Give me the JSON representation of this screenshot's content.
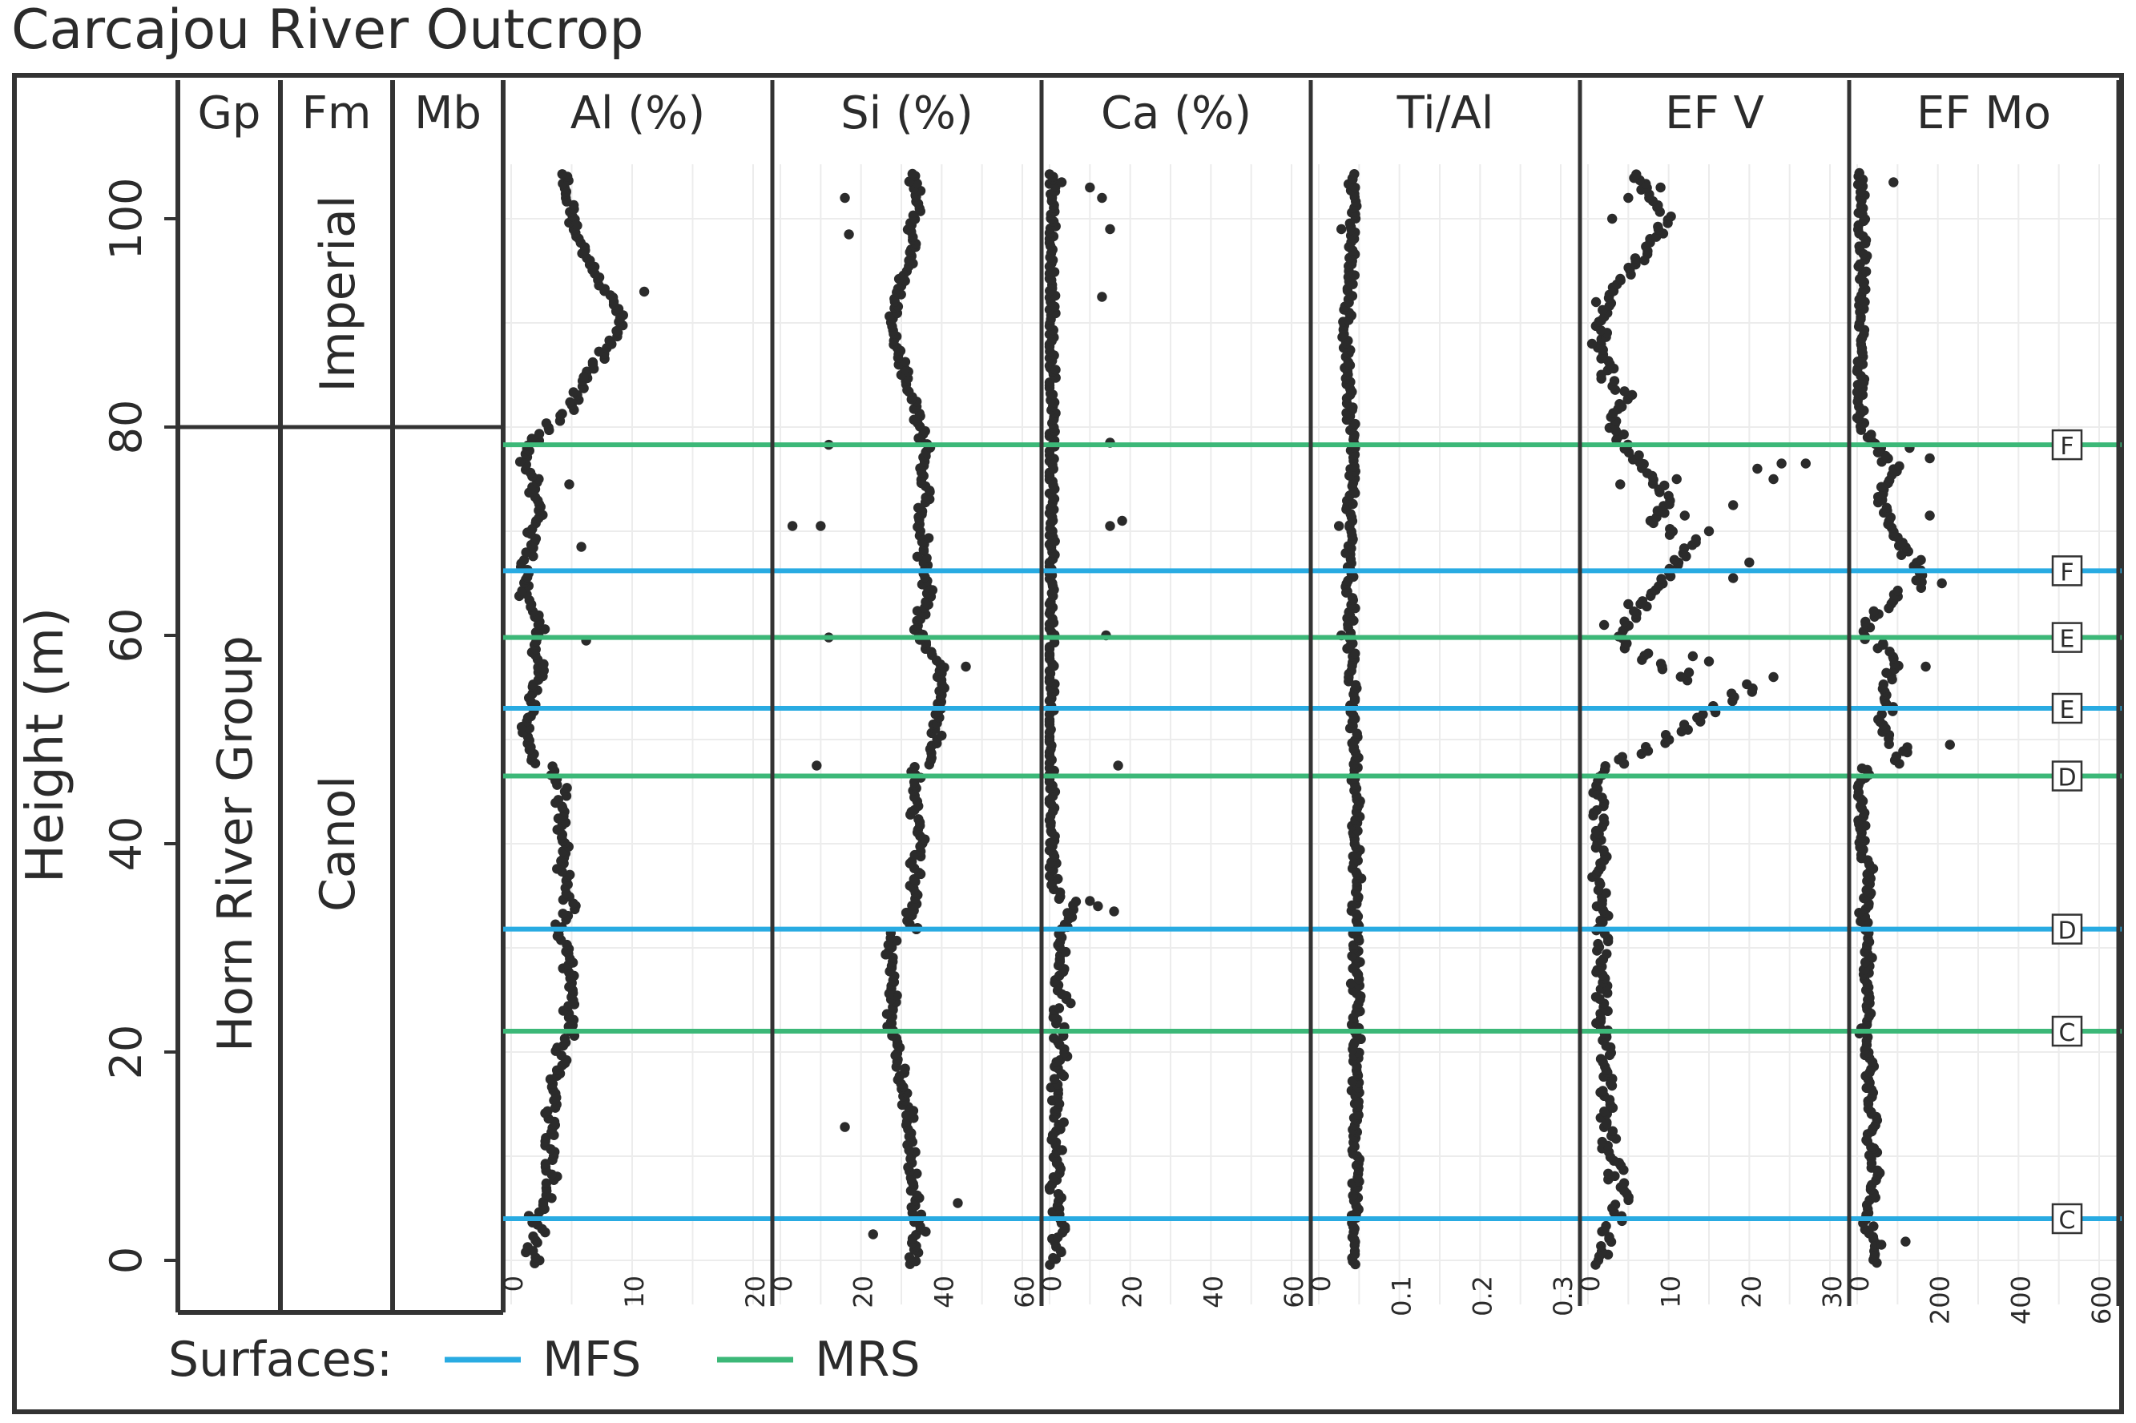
{
  "figure": {
    "title": "Carcajou River Outcrop",
    "y_axis": {
      "label": "Height (m)",
      "range": [
        0,
        105
      ],
      "ticks": [
        0,
        20,
        40,
        60,
        80,
        100
      ]
    },
    "strat_columns": {
      "headers": [
        "Gp",
        "Fm",
        "Mb"
      ],
      "groups": [
        {
          "name": "Horn River Group",
          "from": 0,
          "to": 80
        }
      ],
      "formations": [
        {
          "name": "Imperial",
          "from": 80,
          "to": 105
        },
        {
          "name": "Canol",
          "from": 0,
          "to": 80
        }
      ],
      "boundary_height": 80
    },
    "legend": {
      "label": "Surfaces:",
      "items": [
        {
          "name": "MFS",
          "color": "#29abe2"
        },
        {
          "name": "MRS",
          "color": "#3cb878"
        }
      ]
    },
    "point_color": "#2b2b2b"
  },
  "chart_data": {
    "type": "scatter",
    "y": "height_m",
    "heights": [
      0,
      1,
      2,
      3,
      4,
      5,
      6,
      7,
      8,
      9,
      10,
      11,
      12,
      13,
      14,
      15,
      16,
      17,
      18,
      19,
      20,
      21,
      22,
      23,
      24,
      25,
      26,
      27,
      28,
      29,
      30,
      31,
      32,
      33,
      34,
      35,
      36,
      37,
      38,
      39,
      40,
      41,
      42,
      43,
      44,
      45,
      46,
      47,
      48,
      49,
      50,
      51,
      52,
      53,
      54,
      55,
      56,
      57,
      58,
      59,
      60,
      61,
      62,
      63,
      64,
      65,
      66,
      67,
      68,
      69,
      70,
      71,
      72,
      73,
      74,
      75,
      76,
      77,
      78,
      79,
      80,
      81,
      82,
      83,
      84,
      85,
      86,
      87,
      88,
      89,
      90,
      91,
      92,
      93,
      94,
      95,
      96,
      97,
      98,
      99,
      100,
      101,
      102,
      103,
      104
    ],
    "panels": [
      {
        "name": "Al (%)",
        "xlim": [
          0,
          20
        ],
        "ticks": [
          "0",
          "10",
          "20"
        ],
        "values": [
          2,
          1.5,
          2,
          2.5,
          1.8,
          2.5,
          3,
          2.8,
          3.5,
          3,
          3.5,
          3,
          3.2,
          3.5,
          3,
          3.8,
          3.5,
          3.5,
          4,
          4.5,
          4,
          4.5,
          5,
          5,
          4.5,
          5,
          4.8,
          5,
          4.5,
          5,
          4.5,
          4,
          4,
          4.5,
          5,
          4.5,
          4.8,
          4.5,
          4,
          4.5,
          4.5,
          4,
          4.2,
          4.5,
          4,
          4.5,
          4,
          3.5,
          2,
          1.8,
          1.5,
          1.2,
          1.5,
          2,
          1.8,
          2,
          2.5,
          2.5,
          2,
          1.8,
          2,
          2.5,
          2,
          1.5,
          1,
          1.2,
          1.5,
          1,
          1.5,
          2,
          1.5,
          2,
          2.5,
          2,
          1.8,
          2,
          1.5,
          1,
          1.2,
          2,
          3,
          4,
          5,
          5.5,
          6,
          6.5,
          7,
          7.5,
          8,
          8.5,
          9,
          9,
          8.5,
          8,
          7.5,
          7,
          6.5,
          6,
          5.5,
          5.5,
          5,
          5,
          4.5,
          4.5,
          4.5
        ],
        "outliers": [
          [
            11,
            93
          ],
          [
            6,
            84.8
          ],
          [
            4.8,
            74.5
          ],
          [
            5.8,
            68.5
          ],
          [
            6.2,
            59.5
          ]
        ]
      },
      {
        "name": "Si (%)",
        "xlim": [
          0,
          60
        ],
        "ticks": [
          "0",
          "20",
          "40",
          "60"
        ],
        "values": [
          33,
          34,
          33,
          35,
          34,
          33,
          34,
          33,
          33,
          32,
          33,
          32,
          32,
          31,
          32,
          31,
          31,
          30,
          30,
          29,
          29,
          28,
          27,
          28,
          27,
          28,
          27,
          28,
          28,
          27,
          27,
          28,
          33,
          32,
          33,
          34,
          33,
          34,
          33,
          34,
          35,
          34,
          34,
          33,
          34,
          33,
          34,
          33,
          37,
          38,
          39,
          38,
          39,
          40,
          39,
          40,
          39,
          40,
          38,
          37,
          35,
          34,
          35,
          36,
          37,
          36,
          35,
          36,
          35,
          36,
          35,
          34,
          35,
          36,
          37,
          36,
          35,
          36,
          37,
          35,
          35,
          34,
          33,
          32,
          32,
          31,
          30,
          29,
          29,
          28,
          28,
          28,
          29,
          29,
          30,
          31,
          32,
          33,
          33,
          32,
          33,
          34,
          33,
          34,
          33
        ],
        "outliers": [
          [
            12,
            78.3
          ],
          [
            3,
            70.5
          ],
          [
            10,
            70.5
          ],
          [
            12,
            59.8
          ],
          [
            9,
            47.5
          ],
          [
            16,
            12.8
          ],
          [
            23,
            2.5
          ],
          [
            44,
            5.5
          ],
          [
            46,
            57
          ],
          [
            17,
            98.5
          ],
          [
            16,
            102
          ]
        ]
      },
      {
        "name": "Ca (%)",
        "xlim": [
          0,
          60
        ],
        "ticks": [
          "0",
          "20",
          "40",
          "60"
        ],
        "values": [
          1,
          2,
          1.5,
          3,
          2,
          1.5,
          2,
          1,
          1.5,
          2,
          1,
          2.5,
          1.5,
          3,
          2,
          1.5,
          2,
          1,
          3,
          2,
          4,
          2,
          3,
          1.5,
          2,
          5,
          3,
          2,
          3,
          2,
          3,
          2,
          4,
          5,
          6,
          3,
          1.5,
          1,
          1,
          0.5,
          0.5,
          0.5,
          0.5,
          0.4,
          0.4,
          0.4,
          0.4,
          0.4,
          0.4,
          0.4,
          0.3,
          0.3,
          0.3,
          0.3,
          0.3,
          0.3,
          0.3,
          0.3,
          0.3,
          0.3,
          0.3,
          0.3,
          0.3,
          0.3,
          0.3,
          0.3,
          0.3,
          0.3,
          0.3,
          0.3,
          0.3,
          0.3,
          0.3,
          0.3,
          0.3,
          0.3,
          0.3,
          0.3,
          0.3,
          0.3,
          0.5,
          0.5,
          0.5,
          0.5,
          0.5,
          0.5,
          0.5,
          0.5,
          0.5,
          0.5,
          0.5,
          0.5,
          0.5,
          0.5,
          0.5,
          0.5,
          0.5,
          0.5,
          0.5,
          0.5,
          0.5,
          0.5,
          0.5,
          0.5,
          0.5
        ],
        "outliers": [
          [
            13,
            102
          ],
          [
            15,
            99
          ],
          [
            3,
            103.5
          ],
          [
            10,
            103
          ],
          [
            13,
            92.5
          ],
          [
            1.5,
            85.5
          ],
          [
            15,
            78.5
          ],
          [
            18,
            71
          ],
          [
            15,
            70.5
          ],
          [
            14,
            60
          ],
          [
            17,
            47.5
          ],
          [
            12,
            34
          ],
          [
            16,
            33.5
          ],
          [
            10,
            34.5
          ]
        ]
      },
      {
        "name": "Ti/Al",
        "xlim": [
          0,
          0.3
        ],
        "ticks": [
          "0",
          "0.1",
          "0.2",
          "0.3"
        ],
        "values": [
          0.045,
          0.046,
          0.045,
          0.044,
          0.045,
          0.046,
          0.047,
          0.046,
          0.045,
          0.046,
          0.047,
          0.046,
          0.045,
          0.046,
          0.047,
          0.046,
          0.045,
          0.046,
          0.046,
          0.045,
          0.046,
          0.047,
          0.046,
          0.045,
          0.046,
          0.047,
          0.046,
          0.045,
          0.046,
          0.046,
          0.045,
          0.046,
          0.047,
          0.046,
          0.045,
          0.046,
          0.047,
          0.048,
          0.047,
          0.046,
          0.047,
          0.046,
          0.045,
          0.046,
          0.047,
          0.046,
          0.045,
          0.046,
          0.045,
          0.044,
          0.045,
          0.044,
          0.043,
          0.044,
          0.043,
          0.042,
          0.041,
          0.042,
          0.041,
          0.04,
          0.041,
          0.04,
          0.039,
          0.04,
          0.039,
          0.038,
          0.039,
          0.038,
          0.037,
          0.038,
          0.039,
          0.038,
          0.039,
          0.04,
          0.041,
          0.04,
          0.041,
          0.042,
          0.041,
          0.042,
          0.04,
          0.039,
          0.038,
          0.037,
          0.036,
          0.035,
          0.035,
          0.036,
          0.035,
          0.034,
          0.035,
          0.036,
          0.037,
          0.038,
          0.039,
          0.04,
          0.041,
          0.042,
          0.041,
          0.042,
          0.041,
          0.042,
          0.041,
          0.042,
          0.041
        ],
        "outliers": [
          [
            0.025,
            70.5
          ],
          [
            0.028,
            60
          ],
          [
            0.028,
            99
          ]
        ]
      },
      {
        "name": "EF V",
        "xlim": [
          0,
          30
        ],
        "ticks": [
          "0",
          "10",
          "20",
          "30"
        ],
        "values": [
          1,
          2,
          3,
          2,
          4,
          3,
          5,
          4,
          3,
          4,
          3,
          2,
          3,
          2,
          2,
          3,
          2,
          3,
          2,
          2,
          3,
          2,
          2,
          1.5,
          2,
          1.5,
          2,
          2,
          1.5,
          2,
          1.5,
          2,
          1.5,
          2,
          1.5,
          2,
          1.5,
          1,
          1.5,
          2,
          1.5,
          1,
          1.5,
          1,
          1.5,
          1,
          1.5,
          2,
          4,
          7,
          10,
          12,
          14,
          16,
          18,
          20,
          12,
          9,
          7,
          5,
          4,
          5,
          6,
          7,
          8,
          9,
          10,
          11,
          12,
          13,
          10,
          8,
          9,
          10,
          9,
          8,
          7,
          6,
          5,
          4,
          3,
          3,
          4,
          5,
          3,
          2,
          3,
          2,
          1.5,
          2,
          1.5,
          2,
          2.5,
          3,
          4,
          5,
          6,
          7,
          8,
          9,
          10,
          9,
          8,
          7,
          6
        ],
        "outliers": [
          [
            27,
            76.5
          ],
          [
            24,
            76.5
          ],
          [
            21,
            76
          ],
          [
            23,
            75
          ],
          [
            18,
            72.5
          ],
          [
            20,
            67
          ],
          [
            18,
            65.5
          ],
          [
            15,
            70
          ],
          [
            12,
            71.5
          ],
          [
            11,
            75
          ],
          [
            4,
            74.5
          ],
          [
            2,
            61
          ],
          [
            5,
            63
          ],
          [
            13,
            58
          ],
          [
            15,
            57.5
          ],
          [
            23,
            56
          ],
          [
            9,
            103
          ],
          [
            5,
            102
          ],
          [
            3,
            100
          ],
          [
            7,
            96
          ],
          [
            1,
            92
          ],
          [
            0.5,
            88
          ]
        ]
      },
      {
        "name": "EF Mo",
        "xlim": [
          0,
          600
        ],
        "ticks": [
          "0",
          "200",
          "400",
          "600"
        ],
        "values": [
          40,
          50,
          45,
          30,
          25,
          20,
          35,
          40,
          50,
          45,
          40,
          35,
          30,
          45,
          40,
          35,
          30,
          25,
          30,
          35,
          25,
          20,
          15,
          20,
          25,
          30,
          25,
          20,
          25,
          30,
          25,
          20,
          18,
          15,
          20,
          25,
          30,
          35,
          30,
          20,
          15,
          10,
          10,
          15,
          10,
          10,
          10,
          20,
          100,
          120,
          80,
          70,
          60,
          80,
          70,
          60,
          80,
          100,
          90,
          60,
          20,
          30,
          50,
          80,
          100,
          150,
          160,
          150,
          120,
          110,
          90,
          80,
          70,
          60,
          70,
          80,
          100,
          70,
          50,
          30,
          10,
          10,
          8,
          8,
          8,
          10,
          10,
          12,
          10,
          10,
          10,
          10,
          10,
          12,
          12,
          12,
          15,
          15,
          12,
          10,
          12,
          12,
          12,
          12,
          12
        ],
        "outliers": [
          [
            230,
            49.5
          ],
          [
            170,
            57
          ],
          [
            210,
            65
          ],
          [
            180,
            71.5
          ],
          [
            90,
            103.5
          ],
          [
            180,
            77
          ],
          [
            130,
            78
          ],
          [
            60,
            1.5
          ],
          [
            120,
            1.8
          ],
          [
            20,
            4
          ]
        ]
      }
    ],
    "surfaces": [
      {
        "type": "MFS",
        "height": 4,
        "label": "C"
      },
      {
        "type": "MRS",
        "height": 22,
        "label": "C"
      },
      {
        "type": "MFS",
        "height": 31.8,
        "label": "D"
      },
      {
        "type": "MRS",
        "height": 46.5,
        "label": "D"
      },
      {
        "type": "MFS",
        "height": 53,
        "label": "E"
      },
      {
        "type": "MRS",
        "height": 59.8,
        "label": "E"
      },
      {
        "type": "MFS",
        "height": 66.2,
        "label": "F"
      },
      {
        "type": "MRS",
        "height": 78.3,
        "label": "F"
      }
    ]
  }
}
